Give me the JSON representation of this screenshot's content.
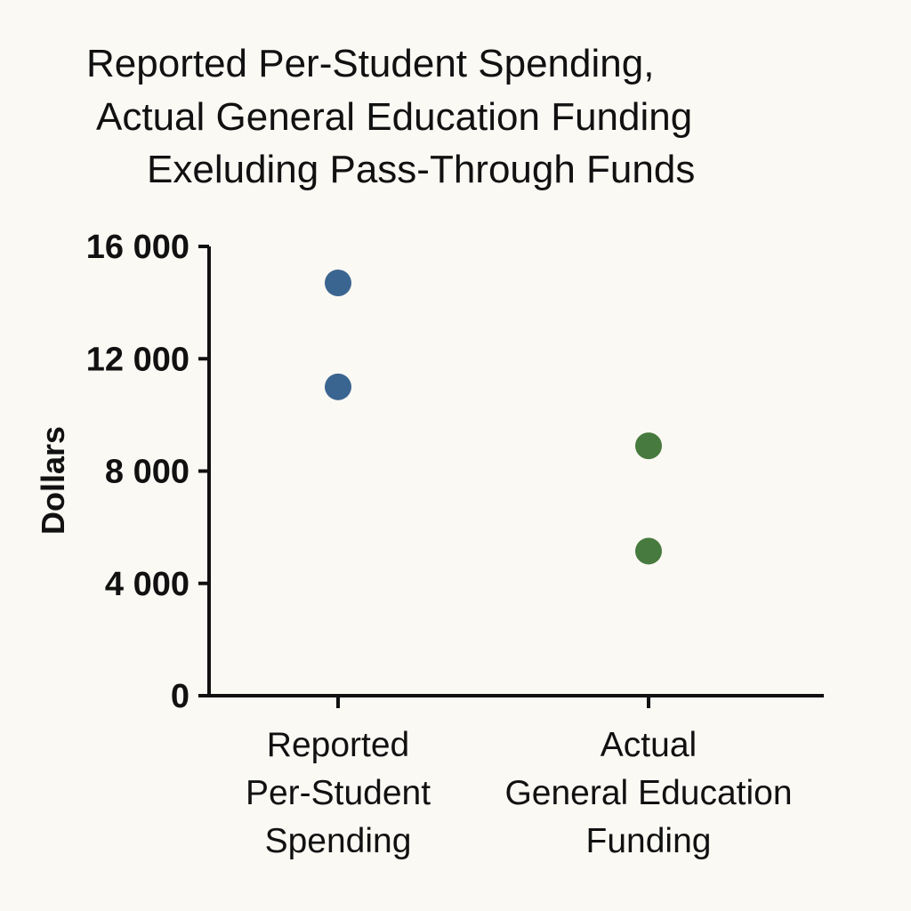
{
  "chart_data": {
    "type": "scatter",
    "title_lines": [
      "Reported Per-Student Spending,",
      "Actual General Education Funding",
      "Exeluding Pass-Through Funds"
    ],
    "xlabel": "",
    "ylabel": "Dollars",
    "ylim": [
      0,
      16000
    ],
    "yticks": [
      0,
      4000,
      8000,
      12000,
      16000
    ],
    "ytick_labels": [
      "0",
      "4 000",
      "8 000",
      "12 000",
      "16 000"
    ],
    "categories": [
      {
        "lines": [
          "Reported",
          "Per-Student",
          "Spending"
        ]
      },
      {
        "lines": [
          "Actual",
          "General Education",
          "Funding"
        ]
      }
    ],
    "points": [
      {
        "category": 0,
        "y": 14700,
        "color": "#3b6591"
      },
      {
        "category": 0,
        "y": 11000,
        "color": "#3b6591"
      },
      {
        "category": 1,
        "y": 8900,
        "color": "#477a3e"
      },
      {
        "category": 1,
        "y": 5150,
        "color": "#477a3e"
      }
    ],
    "grid": false,
    "legend": "none"
  }
}
